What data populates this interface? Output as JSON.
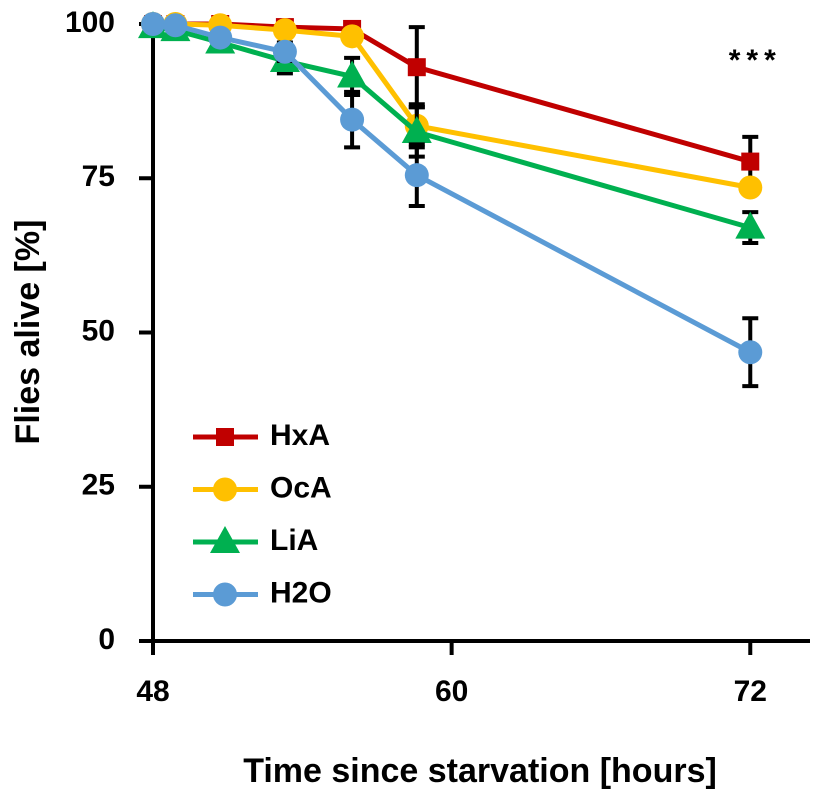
{
  "chart_data": {
    "type": "line",
    "xlabel": "Time since starvation [hours]",
    "ylabel": "Flies alive [%]",
    "annotation": "***",
    "x": [
      48,
      48.9,
      50.7,
      53.3,
      56,
      58.6,
      72
    ],
    "xlim": [
      48,
      74.4
    ],
    "xticks": [
      48,
      60,
      72
    ],
    "ylim": [
      0,
      100
    ],
    "yticks": [
      0,
      25,
      50,
      75,
      100
    ],
    "legend": "lower left",
    "series": [
      {
        "name": "HxA",
        "color": "#c00000",
        "marker": "square",
        "values": [
          100,
          100,
          100,
          99.5,
          99.2,
          93,
          77.7
        ],
        "errors": [
          null,
          null,
          null,
          null,
          null,
          6.5,
          4
        ]
      },
      {
        "name": "OcA",
        "color": "#ffc000",
        "marker": "circle",
        "values": [
          100,
          100,
          99.8,
          99,
          98,
          83.5,
          73.5
        ],
        "errors": [
          null,
          null,
          null,
          null,
          null,
          3.5,
          null
        ]
      },
      {
        "name": "LiA",
        "color": "#00b050",
        "marker": "triangle",
        "values": [
          99.5,
          99,
          97,
          94,
          91.5,
          82.5,
          67
        ],
        "errors": [
          null,
          null,
          null,
          2,
          3,
          4,
          2.5
        ]
      },
      {
        "name": "H2O",
        "color": "#5b9bd5",
        "marker": "circle",
        "values": [
          100,
          99.8,
          97.8,
          95.5,
          84.5,
          75.5,
          46.8
        ],
        "errors": [
          null,
          null,
          null,
          1.5,
          4.5,
          5,
          5.5
        ]
      }
    ]
  }
}
